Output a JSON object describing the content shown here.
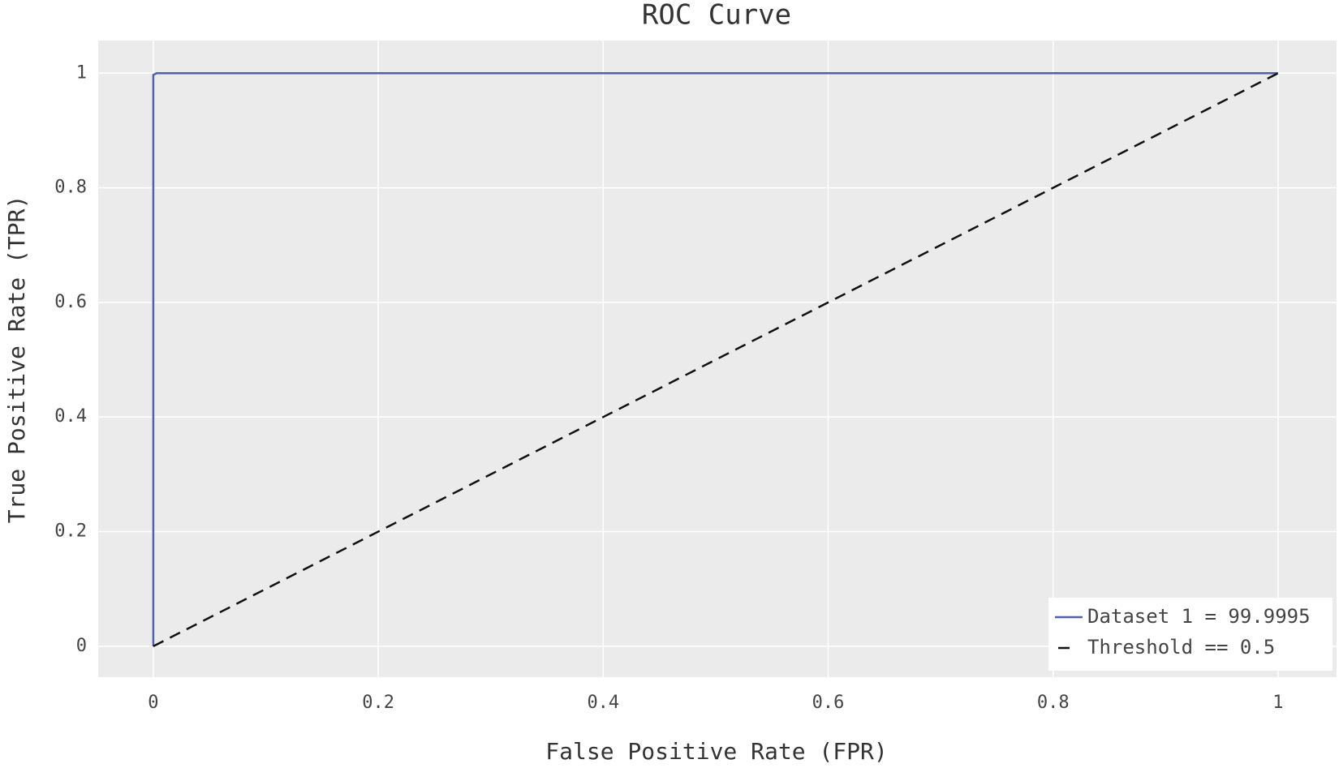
{
  "chart_data": {
    "type": "line",
    "title": "ROC Curve",
    "xlabel": "False Positive Rate (FPR)",
    "ylabel": "True Positive Rate (TPR)",
    "series": [
      {
        "name": "Dataset 1 = 99.9995",
        "color": "#5060b0",
        "dash": false,
        "x": [
          0,
          0,
          0.003,
          1
        ],
        "values": [
          0,
          0.997,
          1,
          1
        ]
      },
      {
        "name": "Threshold == 0.5",
        "color": "#111111",
        "dash": true,
        "x": [
          0,
          1
        ],
        "values": [
          0,
          1
        ]
      }
    ],
    "xlim": [
      -0.049,
      1.052
    ],
    "ylim": [
      -0.054,
      1.057
    ],
    "xticks": [
      0,
      0.2,
      0.4,
      0.6,
      0.8,
      1
    ],
    "yticks": [
      0,
      0.2,
      0.4,
      0.6,
      0.8,
      1
    ],
    "grid": true,
    "legend": "lower right"
  }
}
